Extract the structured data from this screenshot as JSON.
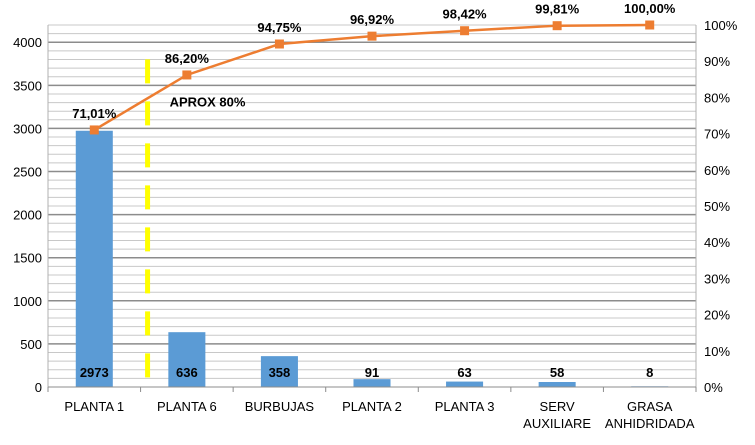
{
  "chart_data": {
    "type": "bar",
    "subtype": "pareto",
    "categories": [
      "PLANTA 1",
      "PLANTA 6",
      "BURBUJAS",
      "PLANTA 2",
      "PLANTA 3",
      "SERV AUXILIARE",
      "GRASA ANHIDRIDADA"
    ],
    "category_lines": [
      [
        "PLANTA 1"
      ],
      [
        "PLANTA 6"
      ],
      [
        "BURBUJAS"
      ],
      [
        "PLANTA 2"
      ],
      [
        "PLANTA 3"
      ],
      [
        "SERV",
        "AUXILIARE"
      ],
      [
        "GRASA",
        "ANHIDRIDADA"
      ]
    ],
    "series": [
      {
        "type": "bar",
        "axis": "left",
        "color": "#5b9bd5",
        "values": [
          2973,
          636,
          358,
          91,
          63,
          58,
          8
        ],
        "labels": [
          "2973",
          "636",
          "358",
          "91",
          "63",
          "58",
          "8"
        ]
      },
      {
        "type": "line",
        "axis": "right",
        "color": "#ed7d31",
        "marker": "square",
        "values": [
          71.01,
          86.2,
          94.75,
          96.92,
          98.42,
          99.81,
          100.0
        ],
        "labels": [
          "71,01%",
          "86,20%",
          "94,75%",
          "96,92%",
          "98,42%",
          "99,81%",
          "100,00%"
        ]
      }
    ],
    "ylim": [
      0,
      4200
    ],
    "y_ticks": [
      0,
      500,
      1000,
      1500,
      2000,
      2500,
      3000,
      3500,
      4000
    ],
    "y2lim": [
      0,
      100
    ],
    "y2_ticks": [
      "0%",
      "10%",
      "20%",
      "30%",
      "40%",
      "50%",
      "60%",
      "70%",
      "80%",
      "90%",
      "100%"
    ],
    "grid": true,
    "annotations": [
      {
        "text": "APROX 80%",
        "color": "#000000"
      },
      {
        "type": "dashed-vertical-line",
        "color": "#ffff00",
        "between": [
          "PLANTA 1",
          "PLANTA 6"
        ]
      }
    ],
    "title": "",
    "xlabel": "",
    "ylabel": ""
  }
}
